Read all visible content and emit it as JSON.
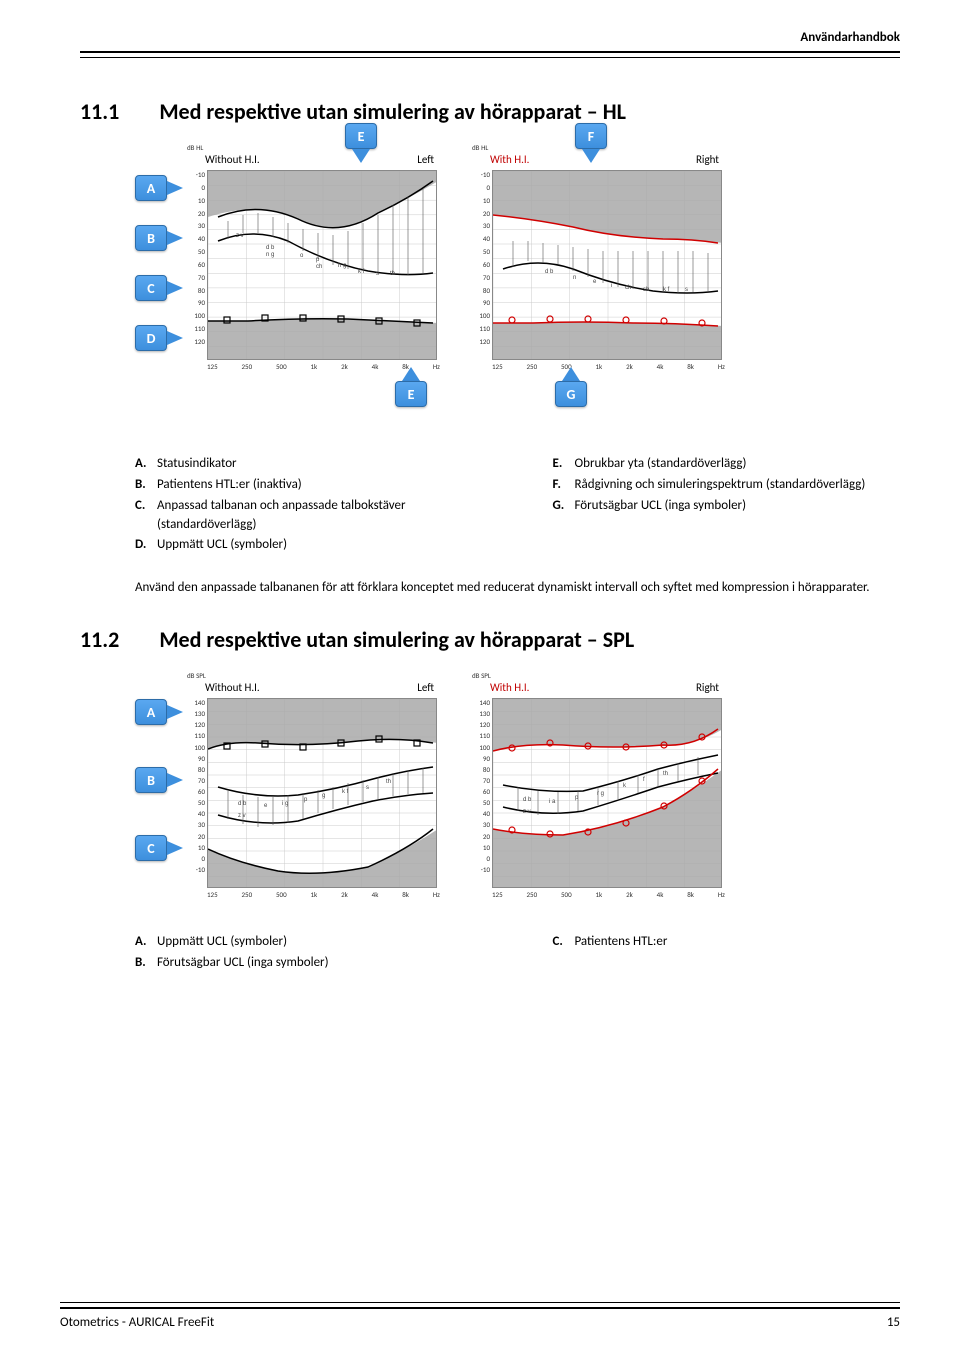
{
  "header": {
    "title": "Användarhandbok"
  },
  "section1": {
    "number": "11.1",
    "title": "Med respektive utan simulering av hörapparat – HL",
    "callouts_side": [
      "A",
      "B",
      "C",
      "D"
    ],
    "callouts_top": [
      "E",
      "F"
    ],
    "callouts_bottom": [
      "E",
      "G"
    ],
    "chart_left": {
      "title_left": "Without H.I.",
      "title_right": "Left",
      "y_unit": "dB HL",
      "y_ticks": [
        "-10",
        "0",
        "10",
        "20",
        "30",
        "40",
        "50",
        "60",
        "70",
        "80",
        "90",
        "100",
        "110",
        "120"
      ],
      "x_ticks": [
        "125",
        "250",
        "500",
        "1k",
        "2k",
        "4k",
        "8k"
      ],
      "x_unit": "Hz",
      "line_color": "#000000",
      "upper_region_color": "#a9a9a9",
      "lower_region_color": "#a9a9a9",
      "background": "#ffffff",
      "grid_color": "#cccccc"
    },
    "chart_right": {
      "title_left": "With H.I.",
      "title_left_color": "#c00000",
      "title_right": "Right",
      "y_unit": "dB HL",
      "y_ticks": [
        "-10",
        "0",
        "10",
        "20",
        "30",
        "40",
        "50",
        "60",
        "70",
        "80",
        "90",
        "100",
        "110",
        "120"
      ],
      "x_ticks": [
        "125",
        "250",
        "500",
        "1k",
        "2k",
        "4k",
        "8k"
      ],
      "x_unit": "Hz",
      "line_color": "#d00000",
      "upper_region_color": "#a9a9a9",
      "lower_region_color": "#a9a9a9"
    },
    "legend_left": [
      {
        "k": "A.",
        "t": "Statusindikator"
      },
      {
        "k": "B.",
        "t": "Patientens HTL:er (inaktiva)"
      },
      {
        "k": "C.",
        "t": "Anpassad talbanan och anpassade talbokstäver (standardöverlägg)"
      },
      {
        "k": "D.",
        "t": "Uppmätt UCL (symboler)"
      }
    ],
    "legend_right": [
      {
        "k": "E.",
        "t": "Obrukbar yta (standardöverlägg)"
      },
      {
        "k": "F.",
        "t": "Rådgivning och simuleringspektrum (standardöverlägg)"
      },
      {
        "k": "G.",
        "t": "Förutsägbar UCL (inga symboler)"
      }
    ],
    "paragraph": "Använd den anpassade talbananen för att förklara konceptet med reducerat dynamiskt intervall och syftet med kompression i hörapparater."
  },
  "section2": {
    "number": "11.2",
    "title": "Med respektive utan simulering av hörapparat – SPL",
    "callouts_side": [
      "A",
      "B",
      "C"
    ],
    "chart_left": {
      "title_left": "Without H.I.",
      "title_right": "Left",
      "y_unit": "dB SPL",
      "y_ticks": [
        "140",
        "130",
        "120",
        "110",
        "100",
        "90",
        "80",
        "70",
        "60",
        "50",
        "40",
        "30",
        "20",
        "10",
        "0",
        "-10"
      ],
      "x_ticks": [
        "125",
        "250",
        "500",
        "1k",
        "2k",
        "4k",
        "8k"
      ],
      "x_unit": "Hz",
      "line_color": "#000000"
    },
    "chart_right": {
      "title_left": "With H.I.",
      "title_left_color": "#c00000",
      "title_right": "Right",
      "y_unit": "dB SPL",
      "y_ticks": [
        "140",
        "130",
        "120",
        "110",
        "100",
        "90",
        "80",
        "70",
        "60",
        "50",
        "40",
        "30",
        "20",
        "10",
        "0",
        "-10"
      ],
      "x_ticks": [
        "125",
        "250",
        "500",
        "1k",
        "2k",
        "4k",
        "8k"
      ],
      "x_unit": "Hz",
      "line_color": "#d00000"
    },
    "legend_left": [
      {
        "k": "A.",
        "t": "Uppmätt UCL (symboler)"
      },
      {
        "k": "B.",
        "t": "Förutsägbar UCL (inga symboler)"
      }
    ],
    "legend_right": [
      {
        "k": "C.",
        "t": "Patientens HTL:er"
      }
    ]
  },
  "footer": {
    "left": "Otometrics - AURICAL FreeFit",
    "page": "15"
  }
}
